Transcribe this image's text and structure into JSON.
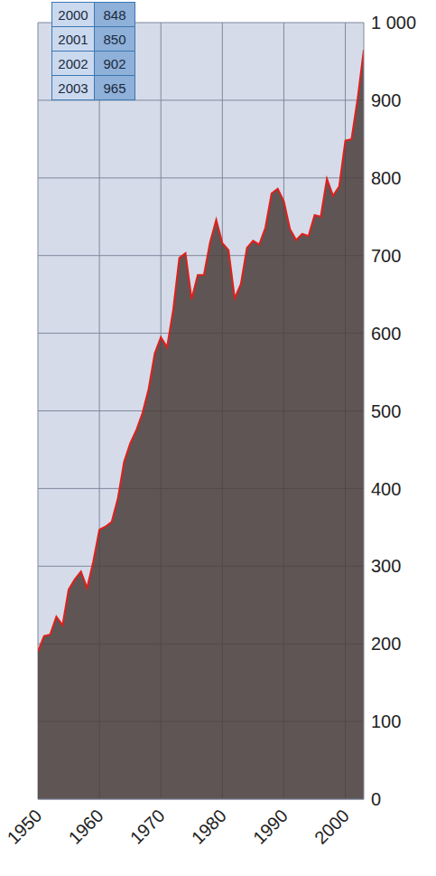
{
  "chart_data": {
    "type": "area",
    "color": "#e0201b",
    "grid": true,
    "x": [
      1950,
      1951,
      1952,
      1953,
      1954,
      1955,
      1956,
      1957,
      1958,
      1959,
      1960,
      1961,
      1962,
      1963,
      1964,
      1965,
      1966,
      1967,
      1968,
      1969,
      1970,
      1971,
      1972,
      1973,
      1974,
      1975,
      1976,
      1977,
      1978,
      1979,
      1980,
      1981,
      1982,
      1983,
      1984,
      1985,
      1986,
      1987,
      1988,
      1989,
      1990,
      1991,
      1992,
      1993,
      1994,
      1995,
      1996,
      1997,
      1998,
      1999,
      2000,
      2001,
      2002,
      2003
    ],
    "values": [
      190,
      210,
      212,
      235,
      224,
      270,
      283,
      293,
      272,
      306,
      347,
      351,
      357,
      387,
      434,
      458,
      475,
      497,
      528,
      574,
      595,
      582,
      630,
      697,
      703,
      644,
      675,
      675,
      717,
      746,
      716,
      707,
      645,
      663,
      710,
      719,
      714,
      736,
      780,
      786,
      770,
      734,
      720,
      728,
      725,
      752,
      750,
      799,
      777,
      789,
      848,
      850,
      902,
      965
    ],
    "xlim": [
      1950,
      2003
    ],
    "xticks": [
      1950,
      1960,
      1970,
      1980,
      1990,
      2000
    ],
    "ylim": [
      0,
      1000
    ],
    "yticks": [
      0,
      100,
      200,
      300,
      400,
      500,
      600,
      700,
      800,
      900,
      {
        "value": 1000,
        "label": "1 000"
      }
    ]
  },
  "table": {
    "rows": [
      [
        2000,
        848
      ],
      [
        2001,
        850
      ],
      [
        2002,
        902
      ],
      [
        2003,
        965
      ]
    ]
  }
}
